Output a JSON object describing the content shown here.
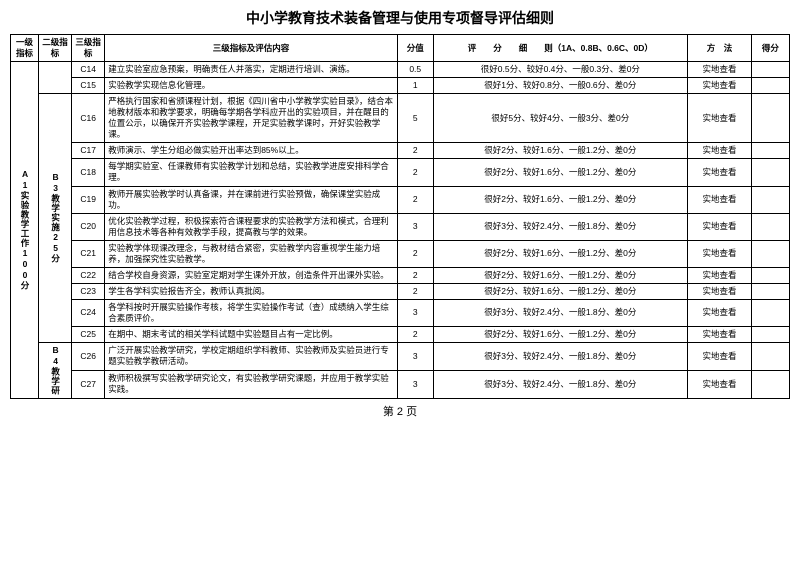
{
  "title": "中小学教育技术装备管理与使用专项督导评估细则",
  "footer": "第 2 页",
  "header": {
    "l1": "一级指标",
    "l2": "二级指标",
    "l3": "三级指标",
    "desc": "三级指标及评估内容",
    "score": "分值",
    "rule": "评　　分　　细　　则（1A、0.8B、0.6C、0D）",
    "method": "方　法",
    "result": "得分"
  },
  "l1": {
    "label": "A1实验教学工作100分"
  },
  "l2a": {
    "label": "B3教学实施25分"
  },
  "l2b": {
    "label": "B4教学研"
  },
  "rows": [
    {
      "code": "C14",
      "desc": "建立实验室应急预案，明确责任人并落实，定期进行培训、演练。",
      "score": "0.5",
      "rule": "很好0.5分、较好0.4分、一般0.3分、差0分",
      "method": "实地查看"
    },
    {
      "code": "C15",
      "desc": "实验教学实现信息化管理。",
      "score": "1",
      "rule": "很好1分、较好0.8分、一般0.6分、差0分",
      "method": "实地查看"
    },
    {
      "code": "C16",
      "desc": "严格执行国家和省颁课程计划，根据《四川省中小学教学实验目录》，结合本地教材版本和教学要求，明确每学期各学科应开出的实验项目，并在醒目的位置公示，以确保开齐实验教学课程，开足实验教学课时，开好实验教学课。",
      "score": "5",
      "rule": "很好5分、较好4分、一般3分、差0分",
      "method": "实地查看"
    },
    {
      "code": "C17",
      "desc": "教师演示、学生分组必做实验开出率达到85%以上。",
      "score": "2",
      "rule": "很好2分、较好1.6分、一般1.2分、差0分",
      "method": "实地查看"
    },
    {
      "code": "C18",
      "desc": "每学期实验室、任课教师有实验教学计划和总结，实验教学进度安排科学合理。",
      "score": "2",
      "rule": "很好2分、较好1.6分、一般1.2分、差0分",
      "method": "实地查看"
    },
    {
      "code": "C19",
      "desc": "教师开展实验教学时认真备课，并在课前进行实验预做，确保课堂实验成功。",
      "score": "2",
      "rule": "很好2分、较好1.6分、一般1.2分、差0分",
      "method": "实地查看"
    },
    {
      "code": "C20",
      "desc": "优化实验教学过程，积极探索符合课程要求的实验教学方法和模式，合理利用信息技术等各种有效教学手段，提高教与学的效果。",
      "score": "3",
      "rule": "很好3分、较好2.4分、一般1.8分、差0分",
      "method": "实地查看"
    },
    {
      "code": "C21",
      "desc": "实验教学体现课改理念，与教材结合紧密，实验教学内容重视学生能力培养，加强探究性实验教学。",
      "score": "2",
      "rule": "很好2分、较好1.6分、一般1.2分、差0分",
      "method": "实地查看"
    },
    {
      "code": "C22",
      "desc": "结合学校自身资源，实验室定期对学生课外开放，创造条件开出课外实验。",
      "score": "2",
      "rule": "很好2分、较好1.6分、一般1.2分、差0分",
      "method": "实地查看"
    },
    {
      "code": "C23",
      "desc": "学生各学科实验报告齐全，教师认真批阅。",
      "score": "2",
      "rule": "很好2分、较好1.6分、一般1.2分、差0分",
      "method": "实地查看"
    },
    {
      "code": "C24",
      "desc": "各学科按时开展实验操作考核，将学生实验操作考试（查）成绩纳入学生综合素质评价。",
      "score": "3",
      "rule": "很好3分、较好2.4分、一般1.8分、差0分",
      "method": "实地查看"
    },
    {
      "code": "C25",
      "desc": "在期中、期末考试的相关学科试题中实验题目占有一定比例。",
      "score": "2",
      "rule": "很好2分、较好1.6分、一般1.2分、差0分",
      "method": "实地查看"
    },
    {
      "code": "C26",
      "desc": "广泛开展实验教学研究，学校定期组织学科教师、实验教师及实验员进行专题实验教学教研活动。",
      "score": "3",
      "rule": "很好3分、较好2.4分、一般1.8分、差0分",
      "method": "实地查看"
    },
    {
      "code": "C27",
      "desc": "教师积极撰写实验教学研究论文，有实验教学研究课题，并应用于教学实验实践。",
      "score": "3",
      "rule": "很好3分、较好2.4分、一般1.8分、差0分",
      "method": "实地查看"
    }
  ]
}
